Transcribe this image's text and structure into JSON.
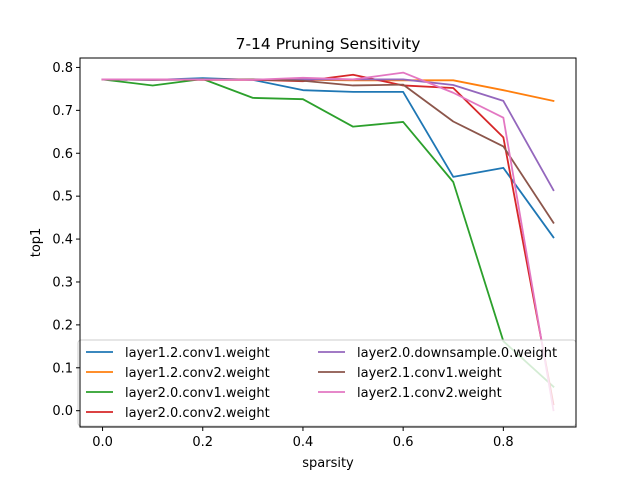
{
  "chart_data": {
    "type": "line",
    "title": "7-14 Pruning Sensitivity",
    "xlabel": "sparsity",
    "ylabel": "top1",
    "xlim": [
      -0.045,
      0.945
    ],
    "ylim": [
      -0.038,
      0.822
    ],
    "xticks": [
      0.0,
      0.2,
      0.4,
      0.6,
      0.8
    ],
    "xtick_labels": [
      "0.0",
      "0.2",
      "0.4",
      "0.6",
      "0.8"
    ],
    "yticks": [
      0.0,
      0.1,
      0.2,
      0.3,
      0.4,
      0.5,
      0.6,
      0.7,
      0.8
    ],
    "ytick_labels": [
      "0.0",
      "0.1",
      "0.2",
      "0.3",
      "0.4",
      "0.5",
      "0.6",
      "0.7",
      "0.8"
    ],
    "grid": false,
    "legend_position": "lower center",
    "x": [
      0.0,
      0.1,
      0.2,
      0.3,
      0.4,
      0.5,
      0.6,
      0.7,
      0.8,
      0.9
    ],
    "series": [
      {
        "name": "layer1.2.conv1.weight",
        "color": "#1f77b4",
        "values": [
          0.772,
          0.771,
          0.775,
          0.771,
          0.747,
          0.743,
          0.743,
          0.545,
          0.566,
          0.404
        ]
      },
      {
        "name": "layer1.2.conv2.weight",
        "color": "#ff7f0e",
        "values": [
          0.772,
          0.772,
          0.772,
          0.772,
          0.771,
          0.77,
          0.77,
          0.77,
          0.747,
          0.722
        ]
      },
      {
        "name": "layer2.0.conv1.weight",
        "color": "#2ca02c",
        "values": [
          0.772,
          0.758,
          0.773,
          0.729,
          0.726,
          0.662,
          0.673,
          0.533,
          0.162,
          0.056
        ]
      },
      {
        "name": "layer2.0.conv2.weight",
        "color": "#d62728",
        "values": [
          0.772,
          0.772,
          0.771,
          0.771,
          0.768,
          0.783,
          0.758,
          0.752,
          0.637,
          0.015
        ]
      },
      {
        "name": "layer2.0.downsample.0.weight",
        "color": "#9467bd",
        "values": [
          0.772,
          0.771,
          0.772,
          0.772,
          0.772,
          0.772,
          0.772,
          0.759,
          0.722,
          0.514
        ]
      },
      {
        "name": "layer2.1.conv1.weight",
        "color": "#8c564b",
        "values": [
          0.772,
          0.771,
          0.772,
          0.772,
          0.769,
          0.758,
          0.76,
          0.674,
          0.616,
          0.438
        ]
      },
      {
        "name": "layer2.1.conv2.weight",
        "color": "#e377c2",
        "values": [
          0.772,
          0.772,
          0.772,
          0.771,
          0.776,
          0.772,
          0.788,
          0.741,
          0.683,
          0.001
        ]
      }
    ]
  }
}
